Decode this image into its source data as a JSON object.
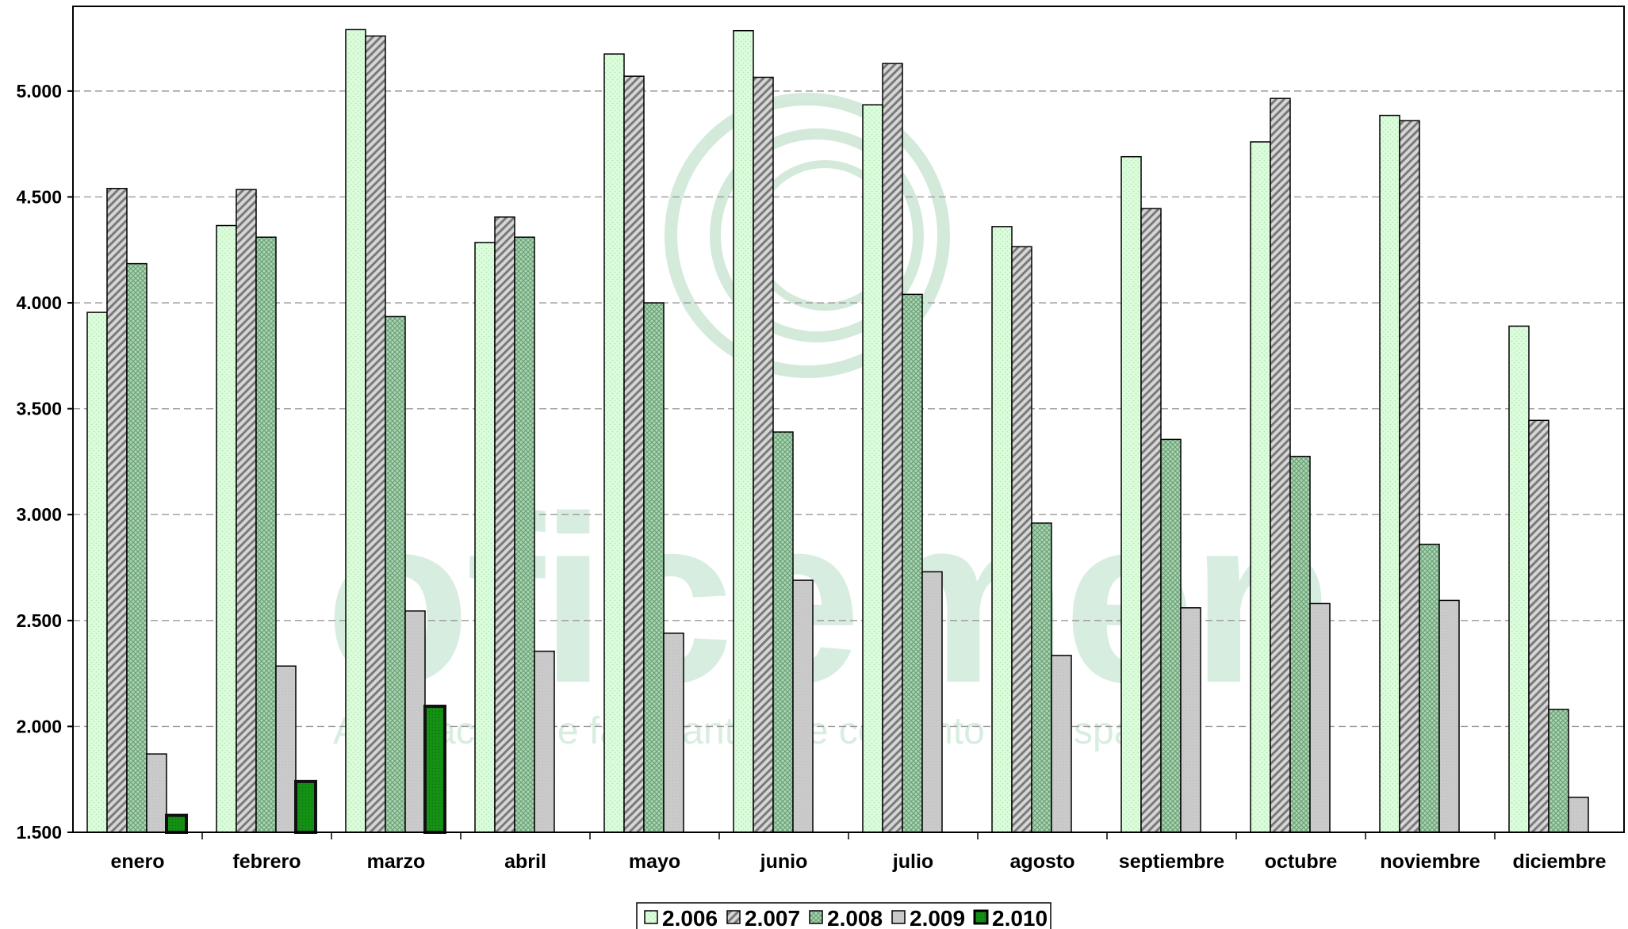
{
  "chart_data": {
    "type": "bar",
    "title": "",
    "xlabel": "",
    "ylabel": "",
    "ylim": [
      1500,
      5400
    ],
    "yticks": [
      1500,
      2000,
      2500,
      3000,
      3500,
      4000,
      4500,
      5000
    ],
    "ytick_labels": [
      "1.500",
      "2.000",
      "2.500",
      "3.000",
      "3.500",
      "4.000",
      "4.500",
      "5.000"
    ],
    "grid": true,
    "legend_position": "bottom",
    "categories": [
      "enero",
      "febrero",
      "marzo",
      "abril",
      "mayo",
      "junio",
      "julio",
      "agosto",
      "septiembre",
      "octubre",
      "noviembre",
      "diciembre"
    ],
    "series": [
      {
        "name": "2.006",
        "color": "#ddffdd",
        "values": [
          3955,
          4365,
          5290,
          4285,
          5175,
          5285,
          4935,
          4360,
          4690,
          4760,
          4885,
          3890
        ]
      },
      {
        "name": "2.007",
        "color": "#b8b8b8",
        "values": [
          4540,
          4535,
          5260,
          4405,
          5070,
          5065,
          5130,
          4265,
          4445,
          4965,
          4860,
          3445
        ]
      },
      {
        "name": "2.008",
        "color": "#8fc49f",
        "values": [
          4185,
          4310,
          3935,
          4310,
          4000,
          3390,
          4040,
          2960,
          3355,
          3275,
          2860,
          2080
        ]
      },
      {
        "name": "2.009",
        "color": "#c8c8c8",
        "values": [
          1870,
          2285,
          2545,
          2355,
          2440,
          2690,
          2730,
          2335,
          2560,
          2580,
          2595,
          1665
        ]
      },
      {
        "name": "2.010",
        "color": "#1a8a1a",
        "values": [
          1580,
          1740,
          2095,
          null,
          null,
          null,
          null,
          null,
          null,
          null,
          null,
          null
        ]
      }
    ]
  },
  "watermark": {
    "brand": "oficemen",
    "tagline": "Agrupación de fabricantes de cemento de España"
  }
}
